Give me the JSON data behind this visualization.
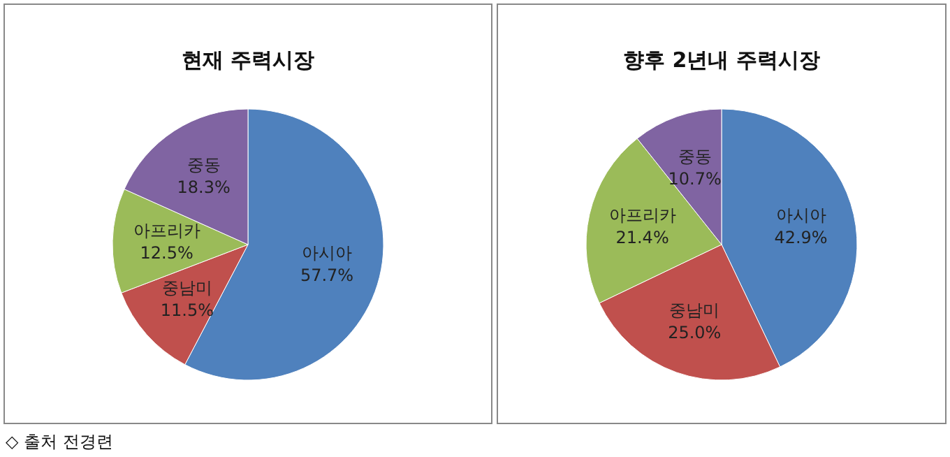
{
  "chart_data": [
    {
      "type": "pie",
      "title": "현재 주력시장",
      "categories": [
        "아시아",
        "중남미",
        "아프리카",
        "중동"
      ],
      "values": [
        57.7,
        11.5,
        12.5,
        18.3
      ],
      "value_labels": [
        "57.7%",
        "11.5%",
        "12.5%",
        "18.3%"
      ],
      "colors": [
        "#4f81bd",
        "#c0504d",
        "#9bbb59",
        "#8064a2"
      ],
      "annotations": [
        "◇ 출처 전경련"
      ]
    },
    {
      "type": "pie",
      "title": "향후 2년내 주력시장",
      "categories": [
        "아시아",
        "중남미",
        "아프리카",
        "중동"
      ],
      "values": [
        42.9,
        25.0,
        21.4,
        10.7
      ],
      "value_labels": [
        "42.9%",
        "25.0%",
        "21.4%",
        "10.7%"
      ],
      "colors": [
        "#4f81bd",
        "#c0504d",
        "#9bbb59",
        "#8064a2"
      ]
    }
  ]
}
